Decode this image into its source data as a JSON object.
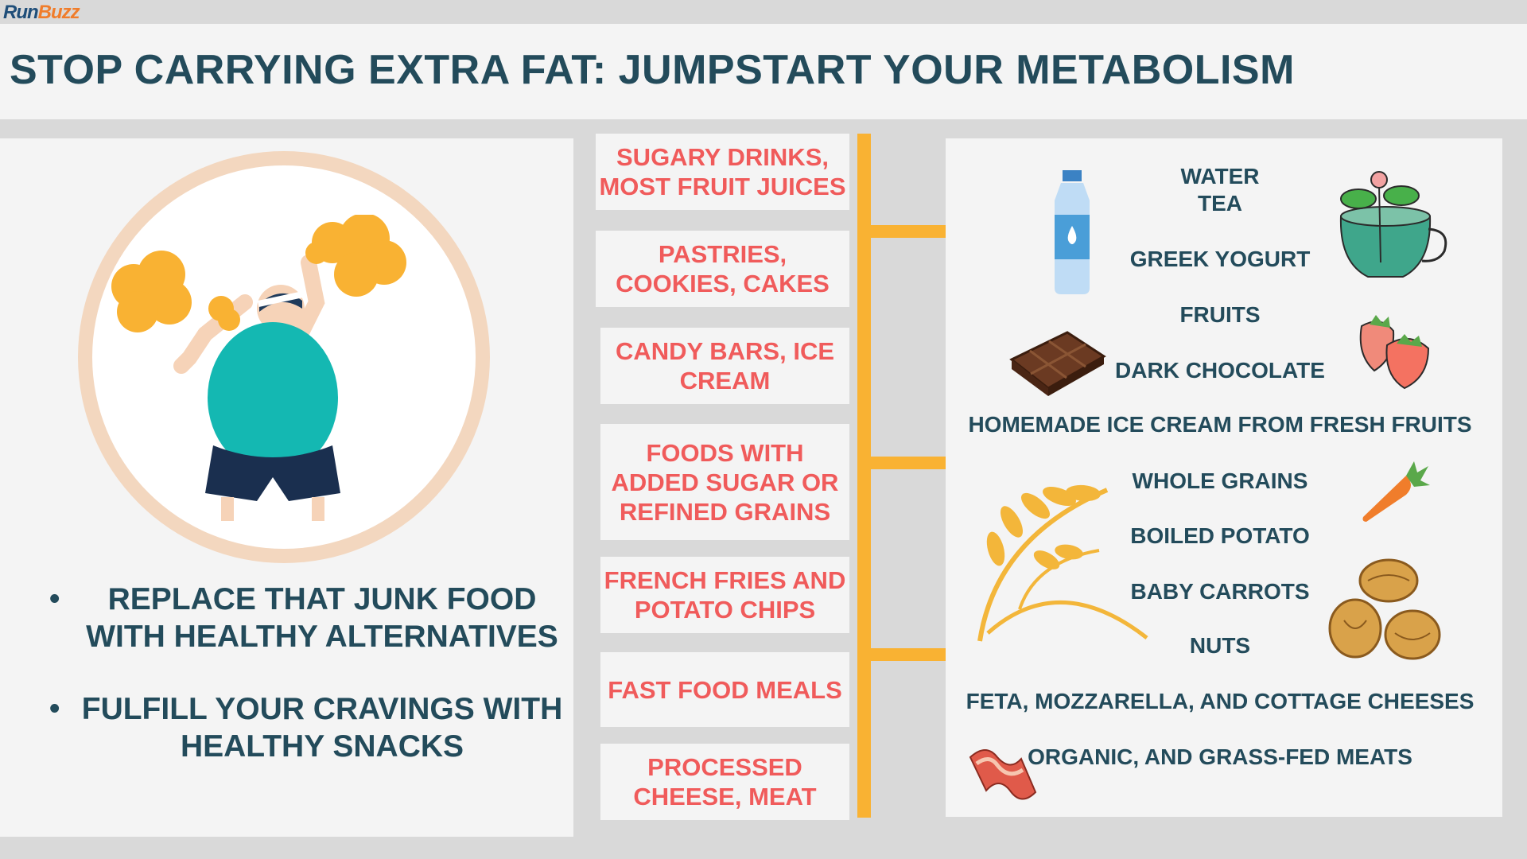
{
  "logo": {
    "part1": "Run",
    "part2": "Buzz"
  },
  "title": "STOP CARRYING EXTRA FAT: JUMPSTART YOUR METABOLISM",
  "bullets": [
    "REPLACE THAT JUNK FOOD WITH HEALTHY ALTERNATIVES",
    "FULFILL YOUR CRAVINGS WITH HEALTHY SNACKS"
  ],
  "junk_foods": [
    "SUGARY DRINKS, MOST FRUIT JUICES",
    "PASTRIES, COOKIES, CAKES",
    "CANDY BARS, ICE CREAM",
    "FOODS WITH ADDED SUGAR OR REFINED GRAINS",
    "FRENCH FRIES AND POTATO CHIPS",
    "FAST FOOD MEALS",
    "PROCESSED CHEESE, MEAT"
  ],
  "healthy_foods": [
    "WATER",
    "TEA",
    "GREEK YOGURT",
    "FRUITS",
    "DARK CHOCOLATE",
    "HOMEMADE ICE CREAM FROM FRESH FRUITS",
    "WHOLE GRAINS",
    "BOILED POTATO",
    "BABY CARROTS",
    "NUTS",
    "FETA, MOZZARELLA, AND COTTAGE CHEESES",
    "ORGANIC, AND GRASS-FED MEATS"
  ],
  "colors": {
    "title": "#234b5b",
    "junk_text": "#f05b5b",
    "arrow": "#f9b233",
    "panel": "#f4f4f4",
    "background": "#d9d9d9"
  },
  "icons": [
    "water-bottle-icon",
    "tea-cup-icon",
    "chocolate-bar-icon",
    "strawberries-icon",
    "wheat-icon",
    "carrot-icon",
    "walnuts-icon",
    "bacon-icon"
  ]
}
